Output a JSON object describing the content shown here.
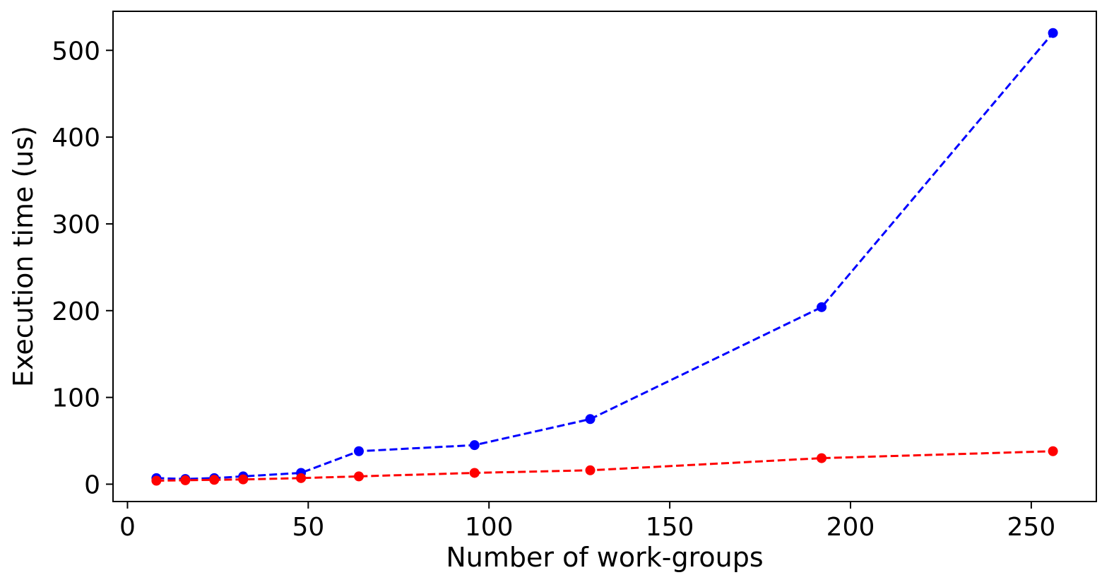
{
  "chart_data": {
    "type": "line",
    "title": "",
    "xlabel": "Number of work-groups",
    "ylabel": "Execution time (us)",
    "xlim": [
      -4,
      268
    ],
    "ylim": [
      -20,
      545
    ],
    "xticks": [
      0,
      50,
      100,
      150,
      200,
      250
    ],
    "xtick_labels": [
      "0",
      "50",
      "100",
      "150",
      "200",
      "250"
    ],
    "yticks": [
      0,
      100,
      200,
      300,
      400,
      500
    ],
    "ytick_labels": [
      "0",
      "100",
      "200",
      "300",
      "400",
      "500"
    ],
    "grid": false,
    "legend": "none",
    "line_style": "dashed",
    "marker": "circle",
    "series": [
      {
        "color": "#0000ff",
        "x": [
          8,
          16,
          24,
          32,
          48,
          64,
          96,
          128,
          192,
          256
        ],
        "y": [
          7,
          6,
          7,
          9,
          13,
          38,
          45,
          75,
          204,
          520
        ]
      },
      {
        "color": "#ff0000",
        "x": [
          8,
          16,
          24,
          32,
          48,
          64,
          96,
          128,
          192,
          256
        ],
        "y": [
          4,
          4.5,
          5,
          5.5,
          7,
          9,
          13,
          16,
          30,
          38
        ]
      }
    ]
  }
}
